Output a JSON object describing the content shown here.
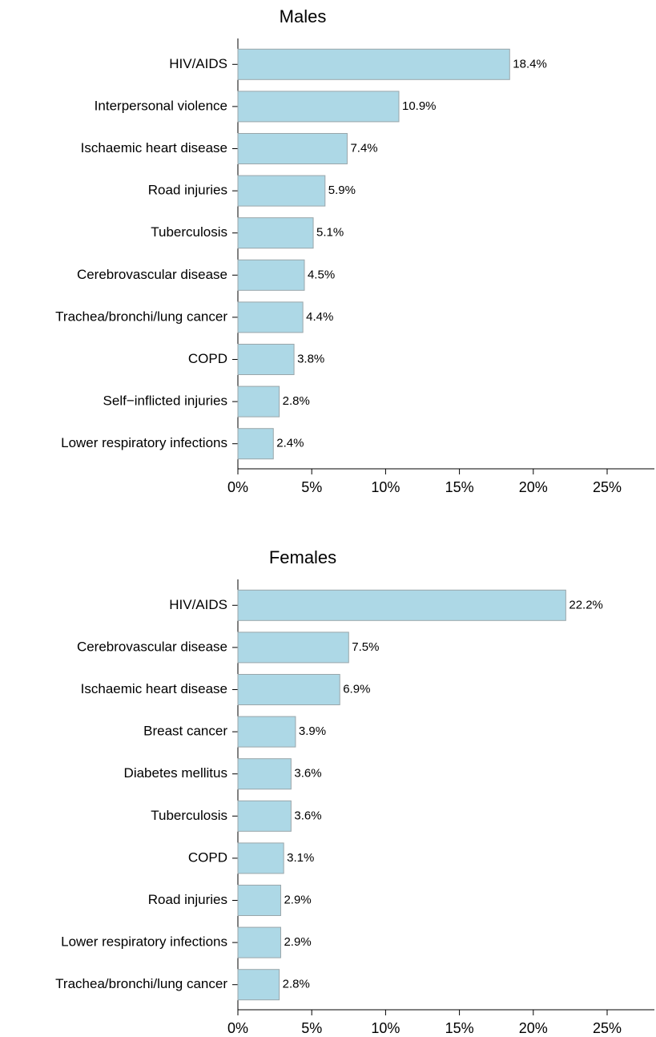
{
  "chart_data": [
    {
      "type": "bar",
      "title": "Males",
      "categories": [
        "HIV/AIDS",
        "Interpersonal violence",
        "Ischaemic heart disease",
        "Road injuries",
        "Tuberculosis",
        "Cerebrovascular disease",
        "Trachea/bronchi/lung cancer",
        "COPD",
        "Self−inflicted injuries",
        "Lower respiratory infections"
      ],
      "values": [
        18.4,
        10.9,
        7.4,
        5.9,
        5.1,
        4.5,
        4.4,
        3.8,
        2.8,
        2.4
      ],
      "value_labels": [
        "18.4%",
        "10.9%",
        "7.4%",
        "5.9%",
        "5.1%",
        "4.5%",
        "4.4%",
        "3.8%",
        "2.8%",
        "2.4%"
      ],
      "color": "#add8e6",
      "xlim": [
        0,
        28.2
      ],
      "xticks": [
        {
          "value": 0,
          "label": "0%"
        },
        {
          "value": 5,
          "label": "5%"
        },
        {
          "value": 10,
          "label": "10%"
        },
        {
          "value": 15,
          "label": "15%"
        },
        {
          "value": 20,
          "label": "20%"
        },
        {
          "value": 25,
          "label": "25%"
        }
      ]
    },
    {
      "type": "bar",
      "title": "Females",
      "categories": [
        "HIV/AIDS",
        "Cerebrovascular disease",
        "Ischaemic heart disease",
        "Breast cancer",
        "Diabetes mellitus",
        "Tuberculosis",
        "COPD",
        "Road injuries",
        "Lower respiratory infections",
        "Trachea/bronchi/lung cancer"
      ],
      "values": [
        22.2,
        7.5,
        6.9,
        3.9,
        3.6,
        3.6,
        3.1,
        2.9,
        2.9,
        2.8
      ],
      "value_labels": [
        "22.2%",
        "7.5%",
        "6.9%",
        "3.9%",
        "3.6%",
        "3.6%",
        "3.1%",
        "2.9%",
        "2.9%",
        "2.8%"
      ],
      "color": "#add8e6",
      "xlim": [
        0,
        28.2
      ],
      "xticks": [
        {
          "value": 0,
          "label": "0%"
        },
        {
          "value": 5,
          "label": "5%"
        },
        {
          "value": 10,
          "label": "10%"
        },
        {
          "value": 15,
          "label": "15%"
        },
        {
          "value": 20,
          "label": "20%"
        },
        {
          "value": 25,
          "label": "25%"
        }
      ]
    }
  ]
}
